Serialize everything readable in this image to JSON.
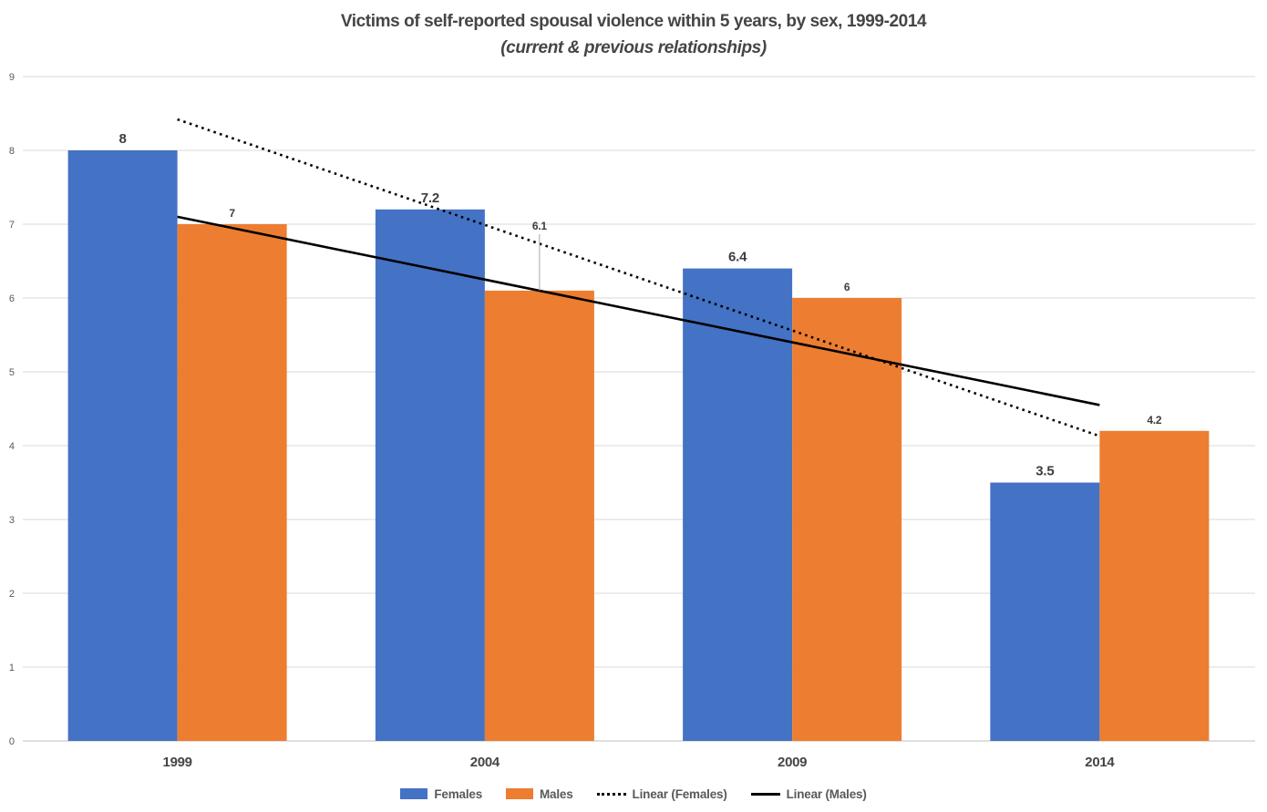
{
  "title": {
    "line1": "Victims of self-reported spousal violence within 5 years, by sex, 1999-2014",
    "line2": "(current & previous relationships)"
  },
  "chart_data": {
    "type": "bar",
    "categories": [
      "1999",
      "2004",
      "2009",
      "2014"
    ],
    "series": [
      {
        "name": "Females",
        "color": "#4472C4",
        "values": [
          8,
          7.2,
          6.4,
          3.5
        ],
        "labels": [
          "8",
          "7.2",
          "6.4",
          "3.5"
        ]
      },
      {
        "name": "Males",
        "color": "#ED7D31",
        "values": [
          7,
          6.1,
          6,
          4.2
        ],
        "labels": [
          "7",
          "6.1",
          "6",
          "4.2"
        ]
      }
    ],
    "trendlines": [
      {
        "name": "Linear (Females)",
        "series_index": 0,
        "style": "dotted",
        "color": "#000000"
      },
      {
        "name": "Linear (Males)",
        "series_index": 1,
        "style": "solid",
        "color": "#000000"
      }
    ],
    "ylim": [
      0,
      9
    ],
    "yticks": [
      0,
      1,
      2,
      3,
      4,
      5,
      6,
      7,
      8,
      9
    ],
    "grid": true,
    "legend_position": "bottom",
    "legend_entries": [
      "Females",
      "Males",
      "Linear (Females)",
      "Linear (Males)"
    ],
    "label_callout": {
      "series_index": 1,
      "point_index": 1,
      "leader_line": true
    },
    "colors": {
      "gridline": "#D9D9D9",
      "axis_line": "#BFBFBF",
      "tick_text": "#595959",
      "category_text": "#454545",
      "data_label_text": "#3D3D3D",
      "leader_line": "#A6A6A6"
    }
  }
}
